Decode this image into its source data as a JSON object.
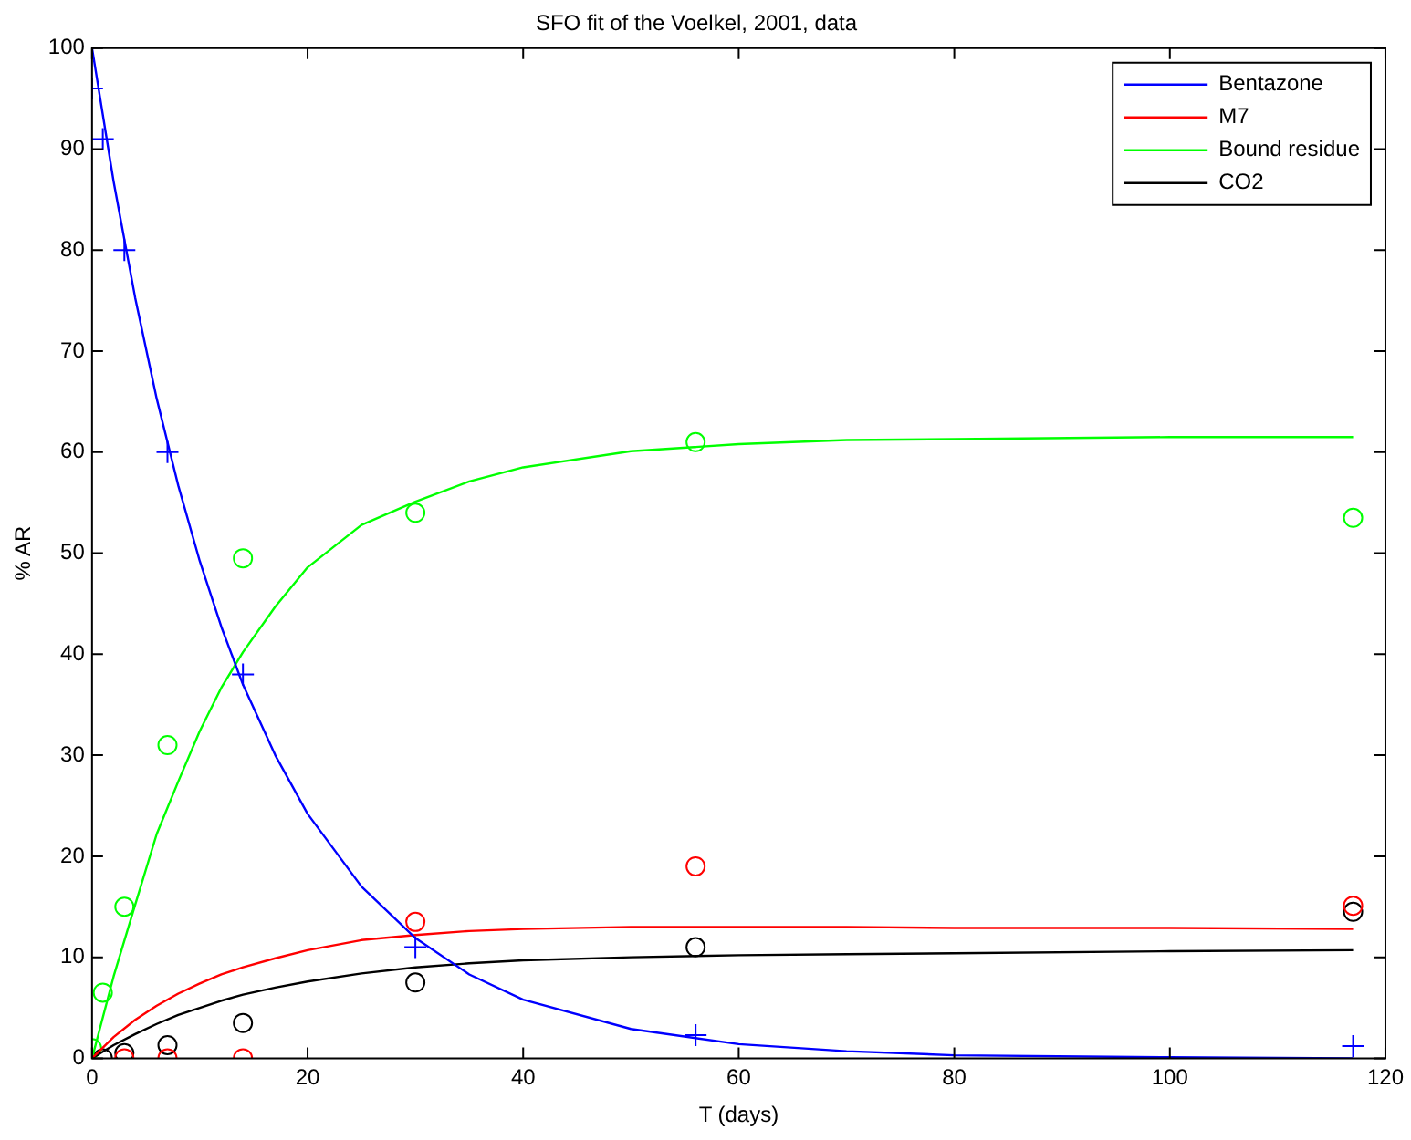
{
  "chart_data": {
    "type": "line",
    "title": "SFO fit of the Voelkel, 2001, data",
    "xlabel": "T (days)",
    "ylabel": "% AR",
    "xlim": [
      0,
      120
    ],
    "xticks": [
      0,
      20,
      40,
      60,
      80,
      100,
      120
    ],
    "ylim": [
      0,
      100
    ],
    "yticks": [
      0,
      10,
      20,
      30,
      40,
      50,
      60,
      70,
      80,
      90,
      100
    ],
    "grid": false,
    "legend": "top right",
    "line_style": "solid",
    "series": [
      {
        "name": "Bentazone",
        "type": "line",
        "marker": "none",
        "color": "#0000ff",
        "x": [
          0,
          2,
          4,
          6,
          8,
          10,
          12,
          14,
          17,
          20,
          25,
          30,
          35,
          40,
          50,
          60,
          70,
          80,
          100,
          117
        ],
        "values": [
          100,
          86.8,
          75.3,
          65.3,
          56.7,
          49.2,
          42.7,
          37.0,
          30.0,
          24.2,
          17.0,
          11.9,
          8.3,
          5.8,
          2.9,
          1.4,
          0.7,
          0.3,
          0.1,
          0
        ]
      },
      {
        "name": "M7",
        "type": "line",
        "marker": "none",
        "color": "#ff0000",
        "x": [
          0,
          2,
          4,
          6,
          8,
          10,
          12,
          14,
          17,
          20,
          25,
          30,
          35,
          40,
          50,
          60,
          70,
          80,
          100,
          117
        ],
        "values": [
          0,
          2.1,
          3.8,
          5.2,
          6.4,
          7.4,
          8.3,
          9.0,
          9.9,
          10.7,
          11.7,
          12.2,
          12.6,
          12.8,
          13.0,
          13.0,
          13.0,
          12.9,
          12.9,
          12.8
        ]
      },
      {
        "name": "Bound residue",
        "type": "line",
        "marker": "none",
        "color": "#00ff00",
        "x": [
          0,
          2,
          4,
          6,
          8,
          10,
          12,
          14,
          17,
          20,
          25,
          30,
          35,
          40,
          50,
          60,
          70,
          80,
          100,
          117
        ],
        "values": [
          0,
          8.1,
          15.2,
          22.2,
          27.4,
          32.4,
          36.7,
          40.2,
          44.7,
          48.6,
          52.8,
          55.1,
          57.1,
          58.5,
          60.1,
          60.8,
          61.2,
          61.3,
          61.5,
          61.5
        ]
      },
      {
        "name": "CO2",
        "type": "line",
        "marker": "none",
        "color": "#000000",
        "x": [
          0,
          2,
          4,
          6,
          8,
          10,
          12,
          14,
          17,
          20,
          25,
          30,
          35,
          40,
          50,
          60,
          70,
          80,
          100,
          117
        ],
        "values": [
          0,
          1.3,
          2.4,
          3.4,
          4.3,
          5.0,
          5.7,
          6.3,
          7.0,
          7.6,
          8.4,
          9.0,
          9.4,
          9.7,
          10.0,
          10.2,
          10.3,
          10.4,
          10.6,
          10.7
        ]
      },
      {
        "type": "scatter",
        "marker": "cross",
        "color": "#0000ff",
        "x": [
          0,
          1,
          3,
          7,
          14,
          30,
          56,
          117
        ],
        "values": [
          96,
          91,
          80,
          60,
          38,
          11,
          2.3,
          1.2
        ]
      },
      {
        "type": "scatter",
        "marker": "circle",
        "color": "#ff0000",
        "x": [
          3,
          7,
          14,
          30,
          56,
          117
        ],
        "values": [
          0,
          0,
          0,
          13.5,
          19,
          15.1
        ]
      },
      {
        "type": "scatter",
        "marker": "circle",
        "color": "#00ff00",
        "x": [
          0,
          1,
          3,
          7,
          14,
          30,
          56,
          117
        ],
        "values": [
          1,
          6.5,
          15,
          31,
          49.5,
          54,
          61,
          53.5
        ]
      },
      {
        "type": "scatter",
        "marker": "circle",
        "color": "#000000",
        "x": [
          1,
          3,
          7,
          14,
          30,
          56,
          117
        ],
        "values": [
          0,
          0.5,
          1.3,
          3.5,
          7.5,
          11,
          14.5
        ]
      }
    ]
  }
}
